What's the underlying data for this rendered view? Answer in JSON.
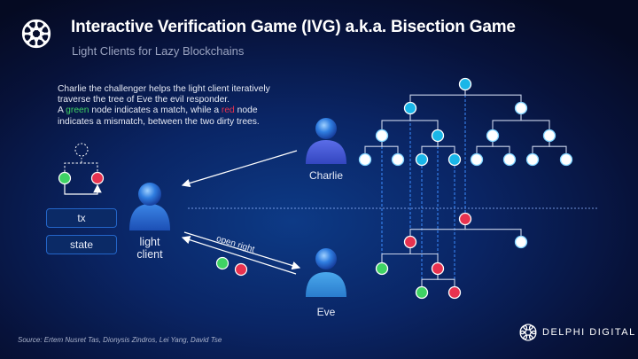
{
  "header": {
    "title": "Interactive Verification Game (IVG) a.k.a. Bisection Game",
    "subtitle": "Light Clients for Lazy Blockchains",
    "logo_icon": "delphi-knot-logo-icon"
  },
  "description": {
    "line1": "Charlie the challenger helps the light client iteratively",
    "line2": "traverse the tree of Eve the evil responder.",
    "line3_a": "A ",
    "line3_green": "green",
    "line3_b": " node indicates a match, while a ",
    "line3_red": "red",
    "line3_c": " node",
    "line4": "indicates a mismatch, between the two dirty trees."
  },
  "boxes": {
    "tx": "tx",
    "state": "state"
  },
  "actors": {
    "light_client": "light\nclient",
    "charlie": "Charlie",
    "eve": "Eve"
  },
  "arrow_label": "open right",
  "colors": {
    "match": "#3fd364",
    "mismatch": "#e8324f",
    "charlie_node": "#19b6e8",
    "plain_node": "#ffffff",
    "accent_blue": "#2466c9"
  },
  "charlie_tree": {
    "nodes": [
      {
        "id": "r",
        "color": "charlie_node"
      },
      {
        "id": "L",
        "parent": "r",
        "color": "charlie_node"
      },
      {
        "id": "R",
        "parent": "r",
        "color": "plain_node"
      },
      {
        "id": "LL",
        "parent": "L",
        "color": "plain_node"
      },
      {
        "id": "LR",
        "parent": "L",
        "color": "charlie_node"
      },
      {
        "id": "RL",
        "parent": "R",
        "color": "plain_node"
      },
      {
        "id": "RR",
        "parent": "R",
        "color": "plain_node"
      },
      {
        "id": "LLL",
        "parent": "LL",
        "color": "plain_node"
      },
      {
        "id": "LLR",
        "parent": "LL",
        "color": "plain_node"
      },
      {
        "id": "LRL",
        "parent": "LR",
        "color": "charlie_node"
      },
      {
        "id": "LRR",
        "parent": "LR",
        "color": "charlie_node"
      },
      {
        "id": "RLL",
        "parent": "RL",
        "color": "plain_node"
      },
      {
        "id": "RLR",
        "parent": "RL",
        "color": "plain_node"
      },
      {
        "id": "RRL",
        "parent": "RR",
        "color": "plain_node"
      },
      {
        "id": "RRR",
        "parent": "RR",
        "color": "plain_node"
      }
    ]
  },
  "eve_tree": {
    "nodes": [
      {
        "id": "r",
        "color": "mismatch"
      },
      {
        "id": "L",
        "parent": "r",
        "color": "mismatch"
      },
      {
        "id": "R",
        "parent": "r",
        "color": "plain_node"
      },
      {
        "id": "LL",
        "parent": "L",
        "color": "match"
      },
      {
        "id": "LR",
        "parent": "L",
        "color": "mismatch"
      },
      {
        "id": "LRL",
        "parent": "LR",
        "color": "match"
      },
      {
        "id": "LRR",
        "parent": "LR",
        "color": "mismatch"
      }
    ]
  },
  "footer": {
    "source": "Source: Ertem Nusret Tas, Dionysis Zindros, Lei Yang, David Tse",
    "brand": "DELPHI DIGITAL"
  }
}
